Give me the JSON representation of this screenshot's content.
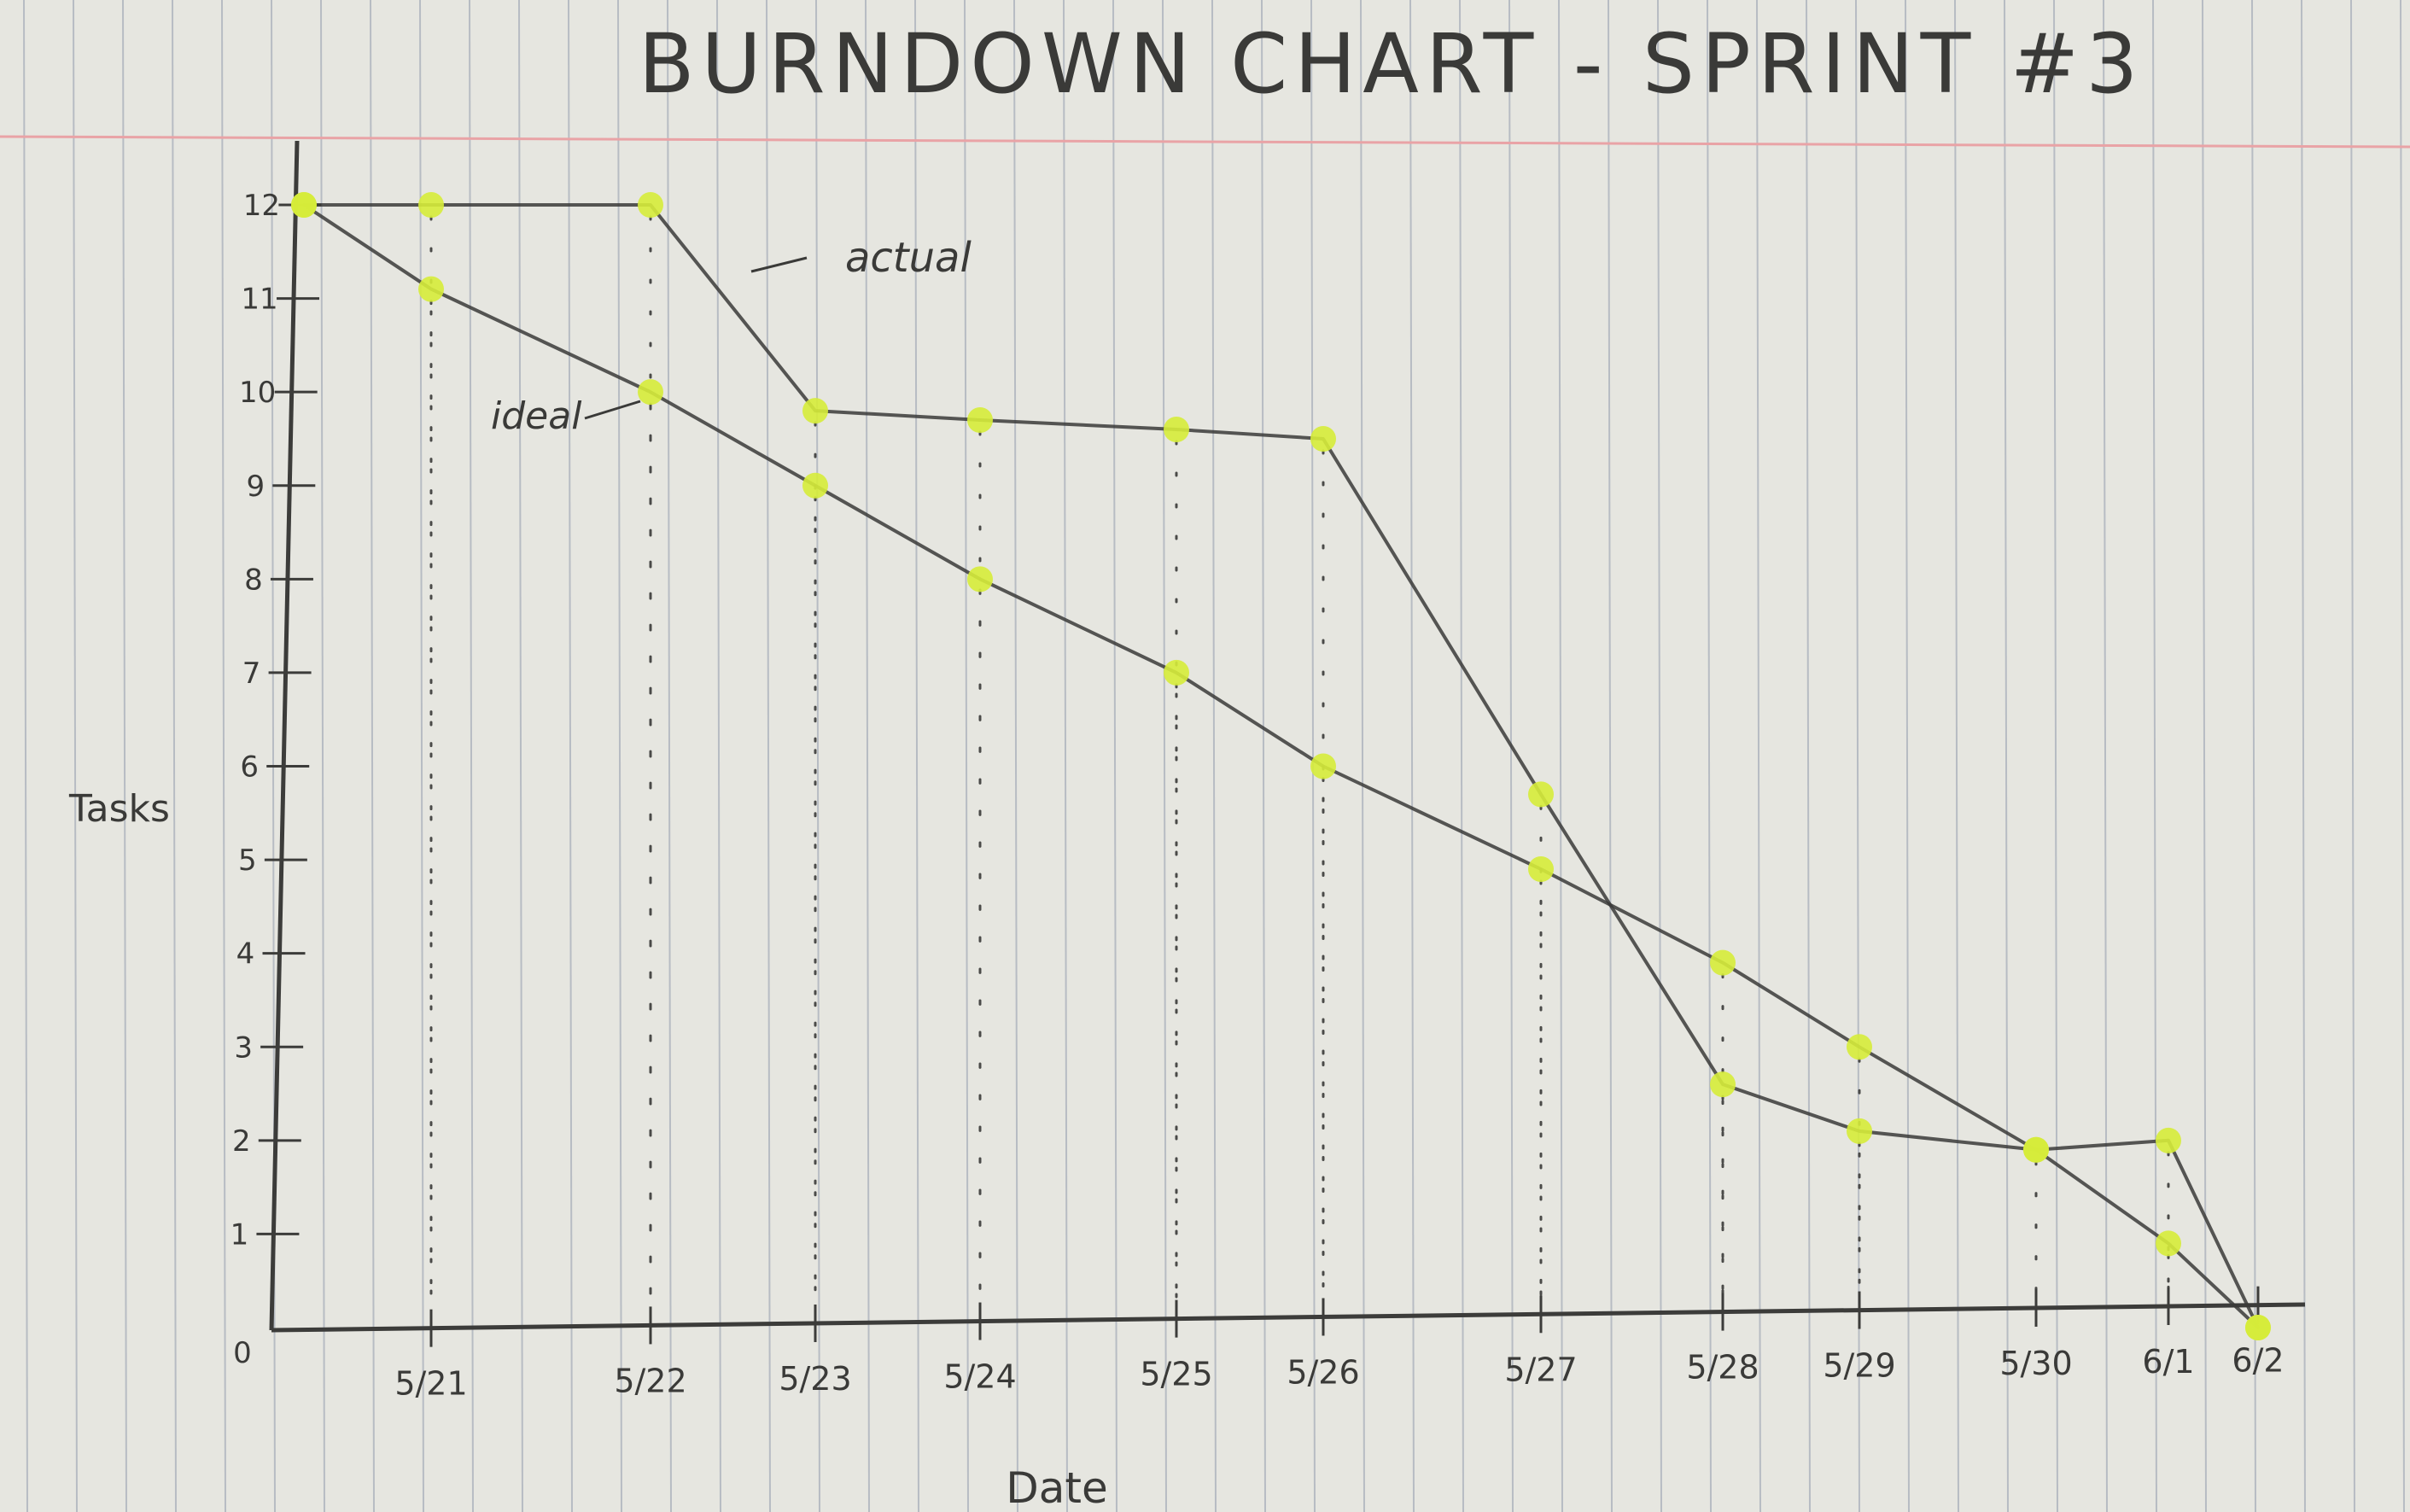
{
  "chart_data": {
    "type": "line",
    "title": "BURNDOWN CHART - SPRINT #3",
    "xlabel": "Date",
    "ylabel": "Tasks",
    "origin_label": "0",
    "categories": [
      "5/21",
      "5/22",
      "5/23",
      "5/24",
      "5/25",
      "5/26",
      "5/27",
      "5/28",
      "5/29",
      "5/30",
      "6/1",
      "6/2"
    ],
    "y_ticks": [
      1,
      2,
      3,
      4,
      5,
      6,
      7,
      8,
      9,
      10,
      11,
      12
    ],
    "ylim": [
      0,
      12
    ],
    "grid": "vertical dotted guides at each date",
    "series": [
      {
        "name": "actual",
        "points": [
          {
            "x": "start",
            "y": 12
          },
          {
            "x": "5/21",
            "y": 12
          },
          {
            "x": "5/22",
            "y": 12
          },
          {
            "x": "5/23",
            "y": 9.8
          },
          {
            "x": "5/24",
            "y": 9.7
          },
          {
            "x": "5/25",
            "y": 9.6
          },
          {
            "x": "5/26",
            "y": 9.5
          },
          {
            "x": "5/27",
            "y": 5.7
          },
          {
            "x": "5/28",
            "y": 2.6
          },
          {
            "x": "5/29",
            "y": 2.1
          },
          {
            "x": "5/30",
            "y": 1.9
          },
          {
            "x": "6/1",
            "y": 2.0
          },
          {
            "x": "6/2",
            "y": 0
          }
        ],
        "color": "#3a3a38"
      },
      {
        "name": "ideal",
        "points": [
          {
            "x": "start",
            "y": 12
          },
          {
            "x": "5/21",
            "y": 11.1
          },
          {
            "x": "5/22",
            "y": 10
          },
          {
            "x": "5/23",
            "y": 9
          },
          {
            "x": "5/24",
            "y": 8
          },
          {
            "x": "5/25",
            "y": 7
          },
          {
            "x": "5/26",
            "y": 6
          },
          {
            "x": "5/27",
            "y": 4.9
          },
          {
            "x": "5/28",
            "y": 3.9
          },
          {
            "x": "5/29",
            "y": 3
          },
          {
            "x": "5/30",
            "y": 1.9
          },
          {
            "x": "6/1",
            "y": 0.9
          },
          {
            "x": "6/2",
            "y": 0
          }
        ],
        "color": "#3a3a38"
      }
    ],
    "marker_color": "#d6ec3a",
    "paper_color": "#e6e6e0",
    "rule_color": "#b7bcc3",
    "margin_color": "#e9a3a6"
  }
}
